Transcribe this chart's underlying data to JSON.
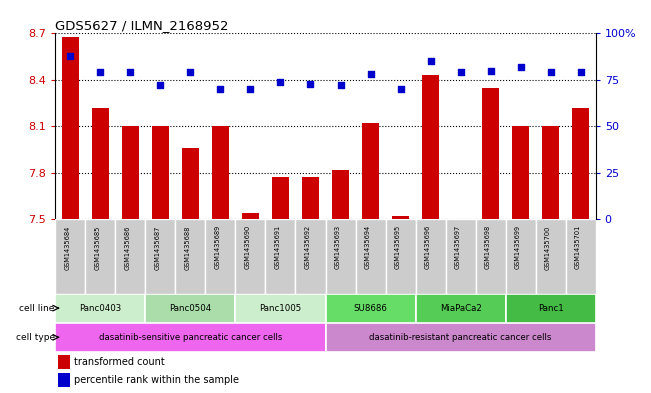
{
  "title": "GDS5627 / ILMN_2168952",
  "samples": [
    "GSM1435684",
    "GSM1435685",
    "GSM1435686",
    "GSM1435687",
    "GSM1435688",
    "GSM1435689",
    "GSM1435690",
    "GSM1435691",
    "GSM1435692",
    "GSM1435693",
    "GSM1435694",
    "GSM1435695",
    "GSM1435696",
    "GSM1435697",
    "GSM1435698",
    "GSM1435699",
    "GSM1435700",
    "GSM1435701"
  ],
  "transformed_count": [
    8.68,
    8.22,
    8.1,
    8.1,
    7.96,
    8.1,
    7.54,
    7.77,
    7.77,
    7.82,
    8.12,
    7.52,
    8.43,
    7.5,
    8.35,
    8.1,
    8.1,
    8.22
  ],
  "percentile_rank": [
    88,
    79,
    79,
    72,
    79,
    70,
    70,
    74,
    73,
    72,
    78,
    70,
    85,
    79,
    80,
    82,
    79,
    79
  ],
  "ylim_left": [
    7.5,
    8.7
  ],
  "ylim_right": [
    0,
    100
  ],
  "yticks_left": [
    7.5,
    7.8,
    8.1,
    8.4,
    8.7
  ],
  "yticks_left_labels": [
    "7.5",
    "7.8",
    "8.1",
    "8.4",
    "8.7"
  ],
  "yticks_right": [
    0,
    25,
    50,
    75,
    100
  ],
  "yticks_right_labels": [
    "0",
    "25",
    "50",
    "75",
    "100%"
  ],
  "bar_color": "#cc0000",
  "dot_color": "#0000cc",
  "cell_lines": [
    {
      "label": "Panc0403",
      "start": 0,
      "end": 3,
      "color": "#cceecc"
    },
    {
      "label": "Panc0504",
      "start": 3,
      "end": 6,
      "color": "#aaddaa"
    },
    {
      "label": "Panc1005",
      "start": 6,
      "end": 9,
      "color": "#cceecc"
    },
    {
      "label": "SU8686",
      "start": 9,
      "end": 12,
      "color": "#66dd66"
    },
    {
      "label": "MiaPaCa2",
      "start": 12,
      "end": 15,
      "color": "#55cc55"
    },
    {
      "label": "Panc1",
      "start": 15,
      "end": 18,
      "color": "#44bb44"
    }
  ],
  "cell_types": [
    {
      "label": "dasatinib-sensitive pancreatic cancer cells",
      "start": 0,
      "end": 9,
      "color": "#ee66ee"
    },
    {
      "label": "dasatinib-resistant pancreatic cancer cells",
      "start": 9,
      "end": 18,
      "color": "#cc88cc"
    }
  ],
  "sample_box_color": "#cccccc",
  "legend_bar_label": "transformed count",
  "legend_dot_label": "percentile rank within the sample",
  "tick_label_color_left": "#cc0000",
  "tick_label_color_right": "#0000cc"
}
